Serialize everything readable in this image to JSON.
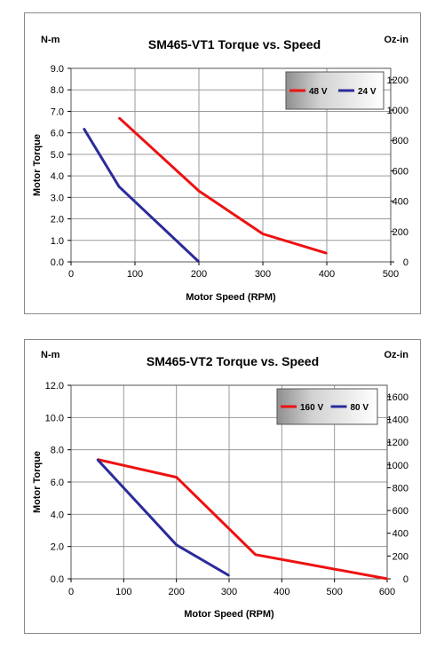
{
  "colors": {
    "series_red": "#ee1111",
    "series_blue": "#2b2b9a",
    "grid": "#9a9a9a"
  },
  "chart_data": [
    {
      "type": "line",
      "title": "SM465-VT1 Torque vs. Speed",
      "left_unit": "N-m",
      "right_unit": "Oz-in",
      "xlabel": "Motor Speed (RPM)",
      "ylabel": "Motor Torque",
      "xlim": [
        0,
        500
      ],
      "ylim": [
        0,
        9
      ],
      "y2lim": [
        0,
        1275
      ],
      "xticks": [
        "0",
        "100",
        "200",
        "300",
        "400",
        "500"
      ],
      "xtick_values": [
        0,
        100,
        200,
        300,
        400,
        500
      ],
      "yticks": [
        "0.0",
        "1.0",
        "2.0",
        "3.0",
        "4.0",
        "5.0",
        "6.0",
        "7.0",
        "8.0",
        "9.0"
      ],
      "ytick_values": [
        0,
        1,
        2,
        3,
        4,
        5,
        6,
        7,
        8,
        9
      ],
      "y2ticks": [
        "0",
        "200",
        "400",
        "600",
        "800",
        "1000",
        "1200"
      ],
      "y2tick_values": [
        0,
        200,
        400,
        600,
        800,
        1000,
        1200
      ],
      "grid": true,
      "legend_placement": "top-right",
      "series": [
        {
          "name": "48 V",
          "color": "#ee1111",
          "x": [
            75,
            200,
            300,
            400
          ],
          "y": [
            6.7,
            3.3,
            1.3,
            0.4
          ]
        },
        {
          "name": "24 V",
          "color": "#2b2b9a",
          "x": [
            20,
            75,
            200
          ],
          "y": [
            6.2,
            3.5,
            0.0
          ]
        }
      ]
    },
    {
      "type": "line",
      "title": "SM465-VT2 Torque vs. Speed",
      "left_unit": "N-m",
      "right_unit": "Oz-in",
      "xlabel": "Motor Speed (RPM)",
      "ylabel": "Motor Torque",
      "xlim": [
        0,
        600
      ],
      "ylim": [
        0,
        12
      ],
      "y2lim": [
        0,
        1700
      ],
      "xticks": [
        "0",
        "100",
        "200",
        "300",
        "400",
        "500",
        "600"
      ],
      "xtick_values": [
        0,
        100,
        200,
        300,
        400,
        500,
        600
      ],
      "yticks": [
        "0.0",
        "2.0",
        "4.0",
        "6.0",
        "8.0",
        "10.0",
        "12.0"
      ],
      "ytick_values": [
        0,
        2,
        4,
        6,
        8,
        10,
        12
      ],
      "y2ticks": [
        "0",
        "200",
        "400",
        "600",
        "800",
        "1000",
        "1200",
        "1400",
        "1600"
      ],
      "y2tick_values": [
        0,
        200,
        400,
        600,
        800,
        1000,
        1200,
        1400,
        1600
      ],
      "grid": true,
      "legend_placement": "top-right",
      "series": [
        {
          "name": "160 V",
          "color": "#ee1111",
          "x": [
            50,
            200,
            350,
            600
          ],
          "y": [
            7.4,
            6.3,
            1.5,
            0.0
          ]
        },
        {
          "name": "80 V",
          "color": "#2b2b9a",
          "x": [
            50,
            200,
            300
          ],
          "y": [
            7.4,
            2.1,
            0.2
          ]
        }
      ]
    }
  ]
}
